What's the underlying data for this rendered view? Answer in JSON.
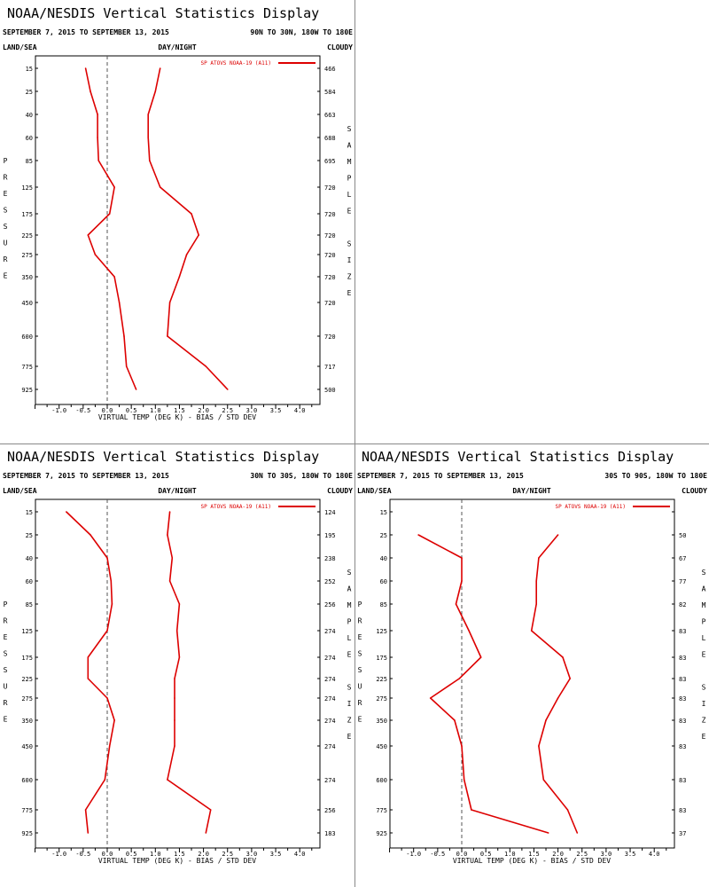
{
  "charts": [
    {
      "title": "NOAA/NESDIS Vertical Statistics Display",
      "date_range": "SEPTEMBER 7, 2015 TO SEPTEMBER 13, 2015",
      "region": "90N TO 30N, 180W TO 180E",
      "corner_labels": {
        "left": "LAND/SEA",
        "center": "DAY/NIGHT",
        "right": "CLOUDY"
      },
      "left_side_label": "PRESSURE",
      "right_side_label": "SAMPLE SIZE",
      "legend": "SP ATOVS NOAA-19 (A11)"
    },
    {
      "title": "NOAA/NESDIS Vertical Statistics Display",
      "date_range": "SEPTEMBER 7, 2015 TO SEPTEMBER 13, 2015",
      "region": "30N TO 30S, 180W TO 180E",
      "corner_labels": {
        "left": "LAND/SEA",
        "center": "DAY/NIGHT",
        "right": "CLOUDY"
      },
      "left_side_label": "PRESSURE",
      "right_side_label": "SAMPLE SIZE",
      "legend": "SP ATOVS NOAA-19 (A11)"
    },
    {
      "title": "NOAA/NESDIS Vertical Statistics Display",
      "date_range": "SEPTEMBER 7, 2015 TO SEPTEMBER 13, 2015",
      "region": "30S TO 90S, 180W TO 180E",
      "corner_labels": {
        "left": "LAND/SEA",
        "center": "DAY/NIGHT",
        "right": "CLOUDY"
      },
      "left_side_label": "PRESSURE",
      "right_side_label": "SAMPLE SIZE",
      "legend": "SP ATOVS NOAA-19 (A11)"
    }
  ],
  "chart_data": [
    {
      "type": "line",
      "xlabel": "VIRTUAL TEMP (DEG K) - BIAS / STD DEV",
      "xlim": [
        -1.5,
        4.5
      ],
      "xticks": [
        "-1.0",
        "-0.5",
        "0.0",
        "0.5",
        "1.0",
        "1.5",
        "2.0",
        "2.5",
        "3.0",
        "3.5",
        "4.0"
      ],
      "levels": [
        "15",
        "25",
        "40",
        "60",
        "85",
        "125",
        "175",
        "225",
        "275",
        "350",
        "450",
        "600",
        "775",
        "925"
      ],
      "sample_size": [
        "466",
        "584",
        "663",
        "688",
        "695",
        "720",
        "720",
        "720",
        "720",
        "720",
        "720",
        "720",
        "717",
        "500"
      ],
      "series": [
        {
          "name": "SP ATOVS NOAA-19 (A11)",
          "color": "#dd0000",
          "bias": [
            -0.45,
            -0.35,
            -0.2,
            -0.2,
            -0.18,
            0.15,
            0.05,
            -0.4,
            -0.25,
            0.15,
            0.25,
            0.35,
            0.4,
            0.6
          ],
          "stddev": [
            1.1,
            1.0,
            0.85,
            0.85,
            0.88,
            1.1,
            1.75,
            1.9,
            1.65,
            1.5,
            1.3,
            1.25,
            2.05,
            2.5
          ]
        }
      ]
    },
    {
      "type": "line",
      "xlabel": "VIRTUAL TEMP (DEG K) - BIAS / STD DEV",
      "xlim": [
        -1.5,
        4.5
      ],
      "xticks": [
        "-1.0",
        "-0.5",
        "0.0",
        "0.5",
        "1.0",
        "1.5",
        "2.0",
        "2.5",
        "3.0",
        "3.5",
        "4.0"
      ],
      "levels": [
        "15",
        "25",
        "40",
        "60",
        "85",
        "125",
        "175",
        "225",
        "275",
        "350",
        "450",
        "600",
        "775",
        "925"
      ],
      "sample_size": [
        "124",
        "195",
        "238",
        "252",
        "256",
        "274",
        "274",
        "274",
        "274",
        "274",
        "274",
        "274",
        "256",
        "183"
      ],
      "series": [
        {
          "name": "SP ATOVS NOAA-19 (A11)",
          "color": "#dd0000",
          "bias": [
            -0.85,
            -0.35,
            0.0,
            0.08,
            0.1,
            0.0,
            -0.4,
            -0.4,
            0.0,
            0.15,
            0.05,
            -0.05,
            -0.45,
            -0.4
          ],
          "stddev": [
            1.3,
            1.25,
            1.35,
            1.3,
            1.5,
            1.45,
            1.5,
            1.4,
            1.4,
            1.4,
            1.4,
            1.25,
            2.15,
            2.05
          ]
        }
      ]
    },
    {
      "type": "line",
      "xlabel": "VIRTUAL TEMP (DEG K) - BIAS / STD DEV",
      "xlim": [
        -1.5,
        4.5
      ],
      "xticks": [
        "-1.0",
        "-0.5",
        "0.0",
        "0.5",
        "1.0",
        "1.5",
        "2.0",
        "2.5",
        "3.0",
        "3.5",
        "4.0"
      ],
      "levels": [
        "15",
        "25",
        "40",
        "60",
        "85",
        "125",
        "175",
        "225",
        "275",
        "350",
        "450",
        "600",
        "775",
        "925"
      ],
      "sample_size": [
        "",
        "50",
        "67",
        "77",
        "82",
        "83",
        "83",
        "83",
        "83",
        "83",
        "83",
        "83",
        "83",
        "37"
      ],
      "series": [
        {
          "name": "SP ATOVS NOAA-19 (A11)",
          "color": "#dd0000",
          "bias": [
            null,
            -0.9,
            0.0,
            0.0,
            -0.12,
            0.15,
            0.4,
            -0.05,
            -0.65,
            -0.15,
            0.0,
            0.05,
            0.2,
            1.8
          ],
          "stddev": [
            null,
            2.0,
            1.6,
            1.55,
            1.55,
            1.45,
            2.1,
            2.25,
            2.0,
            1.75,
            1.6,
            1.7,
            2.2,
            2.4
          ]
        }
      ]
    }
  ]
}
